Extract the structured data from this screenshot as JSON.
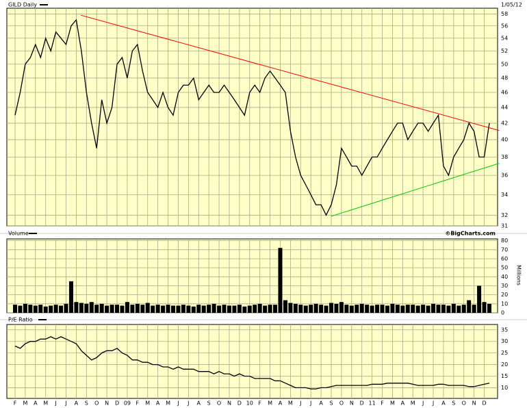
{
  "chart_data": [
    {
      "type": "line",
      "title": "GILD Daily",
      "subtitle": "1/05/12",
      "log": true,
      "grid": true,
      "color": "#000000",
      "ylim": [
        31,
        59
      ],
      "yticks": [
        31,
        32,
        34,
        36,
        38,
        40,
        42,
        44,
        46,
        48,
        50,
        52,
        54,
        56,
        58
      ],
      "values": [
        43,
        46,
        50,
        51,
        53,
        51,
        54,
        52,
        55,
        54,
        53,
        56,
        57,
        52,
        46,
        42,
        39,
        45,
        42,
        44,
        50,
        51,
        48,
        52,
        53,
        49,
        46,
        45,
        44,
        46,
        44,
        43,
        46,
        47,
        47,
        48,
        45,
        46,
        47,
        46,
        46,
        47,
        46,
        45,
        44,
        43,
        46,
        47,
        46,
        48,
        49,
        48,
        47,
        46,
        41,
        38,
        36,
        35,
        34,
        33,
        33,
        32,
        33,
        35,
        39,
        38,
        37,
        37,
        36,
        37,
        38,
        38,
        39,
        40,
        41,
        42,
        42,
        40,
        41,
        42,
        42,
        41,
        42,
        43,
        37,
        36,
        38,
        39,
        40,
        42,
        41,
        38,
        38,
        42
      ],
      "trendlines": [
        {
          "color": "#ff0000",
          "x": [
            12.9,
            94.9
          ],
          "values": [
            57.8,
            41.1
          ]
        },
        {
          "color": "#00cc00",
          "x": [
            62.0,
            94.9
          ],
          "values": [
            31.9,
            37.3
          ]
        }
      ]
    },
    {
      "type": "bar",
      "title": "Volume",
      "source": "©BigCharts.com",
      "y_label": "Millions",
      "grid": true,
      "color": "#000000",
      "ylim": [
        0,
        82
      ],
      "yticks": [
        0,
        10,
        20,
        30,
        40,
        50,
        60,
        70,
        80
      ],
      "values": [
        9,
        8,
        10,
        9,
        8,
        9,
        7,
        8,
        9,
        8,
        10,
        35,
        12,
        11,
        10,
        12,
        9,
        10,
        8,
        9,
        9,
        8,
        12,
        9,
        10,
        9,
        11,
        8,
        9,
        8,
        9,
        8,
        8,
        9,
        8,
        7,
        9,
        8,
        9,
        10,
        8,
        9,
        8,
        8,
        9,
        7,
        8,
        9,
        10,
        8,
        9,
        9,
        72,
        14,
        11,
        10,
        9,
        8,
        9,
        10,
        9,
        8,
        11,
        10,
        12,
        9,
        8,
        9,
        10,
        9,
        8,
        9,
        9,
        8,
        10,
        9,
        8,
        9,
        9,
        8,
        9,
        8,
        10,
        9,
        9,
        8,
        10,
        8,
        9,
        14,
        9,
        30,
        12,
        10
      ]
    },
    {
      "type": "line",
      "title": "P/E Ratio",
      "grid": true,
      "color": "#000000",
      "ylim": [
        5.4,
        37.3
      ],
      "yticks": [
        10,
        15,
        20,
        25,
        30,
        35
      ],
      "categories": [
        "F",
        null,
        "M",
        null,
        "A",
        null,
        "M",
        null,
        "J",
        null,
        "J",
        null,
        "A",
        null,
        "S",
        null,
        "O",
        null,
        "N",
        null,
        "D",
        null,
        "09",
        null,
        "F",
        null,
        "M",
        null,
        "A",
        null,
        "M",
        null,
        "J",
        null,
        "J",
        null,
        "A",
        null,
        "S",
        null,
        "O",
        null,
        "N",
        null,
        "D",
        null,
        "10",
        null,
        "F",
        null,
        "M",
        null,
        "A",
        null,
        "M",
        null,
        "J",
        null,
        "J",
        null,
        "A",
        null,
        "S",
        null,
        "O",
        null,
        "N",
        null,
        "D",
        null,
        "11",
        null,
        "F",
        null,
        "M",
        null,
        "A",
        null,
        "M",
        null,
        "J",
        null,
        "J",
        null,
        "A",
        null,
        "S",
        null,
        "O",
        null,
        "N",
        null,
        "D",
        null
      ],
      "values": [
        28,
        27,
        29,
        30,
        30,
        31,
        31,
        32,
        31,
        32,
        31,
        30,
        29,
        26,
        24,
        22,
        23,
        25,
        26,
        26,
        27,
        25,
        24,
        22,
        22,
        21,
        21,
        20,
        20,
        19,
        19,
        18,
        19,
        18,
        18,
        18,
        17,
        17,
        17,
        16,
        17,
        16,
        16,
        15,
        16,
        15,
        15,
        14,
        14,
        14,
        14,
        13,
        13,
        12,
        11,
        10,
        10,
        10,
        9.5,
        9.5,
        10,
        10,
        10.5,
        11,
        11,
        11,
        11,
        11,
        11,
        11,
        11.5,
        11.5,
        11.5,
        12,
        12,
        12,
        12,
        12,
        11.5,
        11,
        11,
        11,
        11,
        11.5,
        11.5,
        11,
        11,
        11,
        11,
        10.5,
        10.5,
        11,
        11.5,
        12
      ]
    }
  ]
}
